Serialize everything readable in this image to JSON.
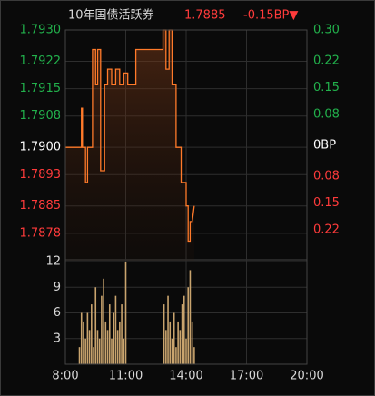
{
  "chart_data": [
    {
      "type": "line",
      "title": "10年国债活跃券",
      "last": 1.7885,
      "change": "-0.15BP▼",
      "up_color": "#22b14c",
      "down_color": "#ff3b3b",
      "flat_color": "#ffffff",
      "color": "#ff7a2a",
      "x": [
        8.0,
        8.8,
        8.8,
        8.85,
        8.85,
        9.0,
        9.0,
        9.1,
        9.1,
        9.35,
        9.35,
        9.5,
        9.5,
        9.6,
        9.6,
        9.75,
        9.75,
        9.95,
        9.95,
        10.1,
        10.1,
        10.3,
        10.3,
        10.5,
        10.5,
        10.7,
        10.7,
        10.9,
        10.9,
        11.1,
        11.1,
        11.5,
        11.5,
        12.85,
        12.85,
        13.0,
        13.0,
        13.15,
        13.15,
        13.3,
        13.3,
        13.5,
        13.5,
        13.75,
        13.75,
        14.0,
        14.0,
        14.1,
        14.1,
        14.2,
        14.2,
        14.3,
        14.4
      ],
      "values": [
        1.79,
        1.79,
        1.791,
        1.791,
        1.79,
        1.79,
        1.7891,
        1.7891,
        1.79,
        1.79,
        1.7925,
        1.7925,
        1.7916,
        1.7916,
        1.7925,
        1.7925,
        1.7894,
        1.7894,
        1.7916,
        1.7916,
        1.792,
        1.792,
        1.7916,
        1.7916,
        1.792,
        1.792,
        1.7916,
        1.7916,
        1.7919,
        1.7919,
        1.7916,
        1.7916,
        1.7925,
        1.7925,
        1.793,
        1.793,
        1.792,
        1.792,
        1.793,
        1.793,
        1.7916,
        1.7916,
        1.79,
        1.79,
        1.7891,
        1.7891,
        1.7885,
        1.7885,
        1.7876,
        1.7876,
        1.7881,
        1.7881,
        1.7885
      ],
      "xlim": [
        8,
        20
      ],
      "ylim": [
        1.7871,
        1.793
      ],
      "yticks": [
        {
          "value": 1.793,
          "label": "1.7930"
        },
        1.7922,
        1.7915,
        1.7908,
        {
          "value": 1.79,
          "label": "1.7900"
        },
        1.7893,
        1.7885,
        1.7878
      ],
      "y2lim": [
        -0.3,
        0.3
      ],
      "y2ticks": [
        {
          "value": 0.3,
          "label": "0.30"
        },
        0.22,
        0.15,
        0.08,
        {
          "value": 0,
          "label": "0BP"
        },
        {
          "value": -0.08,
          "label": "0.08"
        },
        {
          "value": -0.15,
          "label": "0.15"
        },
        {
          "value": -0.22,
          "label": "0.22"
        }
      ],
      "grid": true
    },
    {
      "type": "bar",
      "color": "#c9a46e",
      "x": [
        8.7,
        8.8,
        8.9,
        9.0,
        9.1,
        9.2,
        9.3,
        9.4,
        9.5,
        9.6,
        9.7,
        9.8,
        9.9,
        10.0,
        10.1,
        10.2,
        10.3,
        10.4,
        10.5,
        10.6,
        10.7,
        10.8,
        10.9,
        11.0,
        12.9,
        13.0,
        13.1,
        13.2,
        13.3,
        13.4,
        13.5,
        13.6,
        13.7,
        13.8,
        13.9,
        14.0,
        14.1,
        14.2,
        14.3,
        14.4
      ],
      "values": [
        2,
        6,
        5,
        3,
        6,
        4,
        7,
        2,
        9,
        4,
        3,
        8,
        10,
        5,
        4,
        7,
        3,
        6,
        8,
        4,
        5,
        7,
        3,
        12,
        7,
        4,
        8,
        5,
        3,
        6,
        2,
        5,
        4,
        7,
        8,
        3,
        9,
        11,
        5,
        2
      ],
      "xlim": [
        8,
        20
      ],
      "xticks": [
        {
          "value": 8,
          "label": "8:00"
        },
        {
          "value": 11,
          "label": "11:00"
        },
        {
          "value": 14,
          "label": "14:00"
        },
        {
          "value": 17,
          "label": "17:00"
        },
        {
          "value": 20,
          "label": "20:00"
        }
      ],
      "ylim": [
        0,
        12
      ],
      "yticks": [
        12,
        9,
        6,
        3
      ],
      "grid": true
    }
  ]
}
